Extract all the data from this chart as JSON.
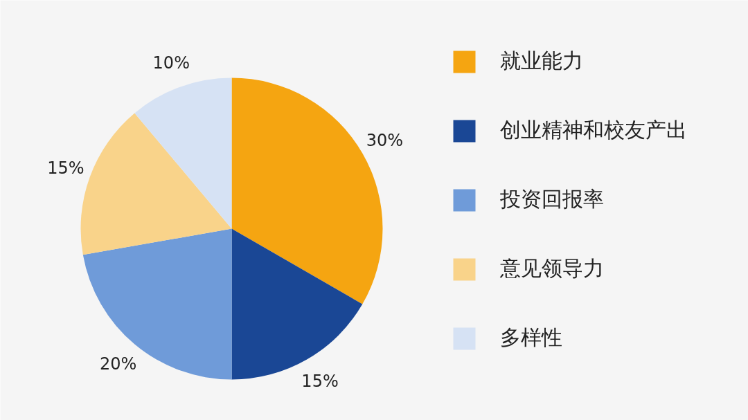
{
  "chart_data": {
    "type": "pie",
    "categories": [
      "就业能力",
      "创业精神和校友产出",
      "投资回报率",
      "意见领导力",
      "多样性"
    ],
    "values": [
      30,
      15,
      20,
      15,
      10
    ],
    "colors": [
      "#f5a511",
      "#1a4795",
      "#6f9bd9",
      "#f9d38a",
      "#d6e2f4"
    ],
    "value_labels": [
      "30%",
      "15%",
      "20%",
      "15%",
      "10%"
    ],
    "legend": "right"
  }
}
